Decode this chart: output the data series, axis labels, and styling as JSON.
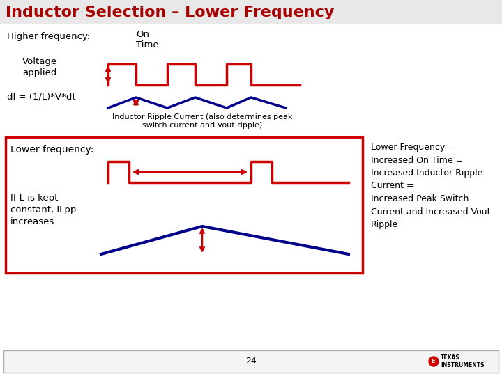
{
  "title": "Inductor Selection – Lower Frequency",
  "title_color": "#AA0000",
  "title_fontsize": 16,
  "bg_color": "#FFFFFF",
  "higher_freq_label": "Higher frequency:",
  "on_time_label": "On\nTime",
  "voltage_applied_label": "Voltage\napplied",
  "dI_label": "dI = (1/L)*V*dt",
  "ripple_label": "Inductor Ripple Current (also determines peak\nswitch current and Vout ripple)",
  "lower_freq_label": "Lower frequency:",
  "if_L_label": "If L is kept\nconstant, ILpp\nincreases",
  "right_text": "Lower Frequency =\nIncreased On Time =\nIncreased Inductor Ripple\nCurrent =\nIncreased Peak Switch\nCurrent and Increased Vout\nRipple",
  "page_number": "24",
  "red": "#CC0000",
  "blue": "#00008B"
}
